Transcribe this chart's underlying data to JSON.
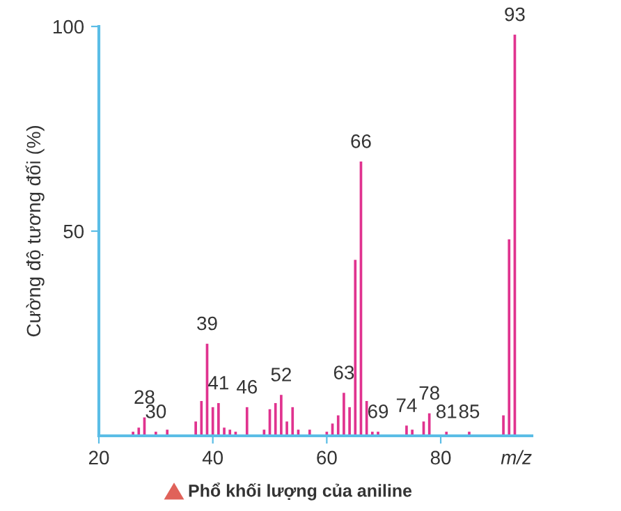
{
  "chart_data": {
    "type": "bar",
    "ylabel": "Cường độ tương đối (%)",
    "xlabel": "m/z",
    "x": [
      26,
      27,
      28,
      30,
      32,
      37,
      38,
      39,
      40,
      41,
      42,
      43,
      44,
      46,
      49,
      50,
      51,
      52,
      53,
      54,
      55,
      57,
      60,
      61,
      62,
      63,
      64,
      65,
      66,
      67,
      68,
      69,
      74,
      75,
      77,
      78,
      81,
      85,
      91,
      92,
      93
    ],
    "values": [
      1,
      2,
      4.5,
      1,
      1.5,
      3.5,
      8.5,
      22.5,
      7,
      8,
      2,
      1.5,
      1,
      7,
      1.5,
      6.5,
      8,
      10,
      3.5,
      7,
      1.5,
      1.5,
      1,
      3,
      5,
      10.5,
      7,
      43,
      67,
      8.5,
      1,
      1,
      2.5,
      1.5,
      3.5,
      5.5,
      1,
      1,
      5,
      48,
      98
    ],
    "color": "#e0338f",
    "xlim": [
      20,
      96
    ],
    "ylim": [
      0,
      100
    ],
    "xticks": [
      20,
      40,
      60,
      80
    ],
    "yticks": [
      50,
      100
    ],
    "grid": false,
    "legend": false,
    "annotations": [
      {
        "text": "28",
        "x": 28,
        "y": 4.5
      },
      {
        "text": "30",
        "x": 30,
        "y": 1
      },
      {
        "text": "39",
        "x": 39,
        "y": 22.5
      },
      {
        "text": "41",
        "x": 41,
        "y": 8
      },
      {
        "text": "46",
        "x": 46,
        "y": 7
      },
      {
        "text": "52",
        "x": 52,
        "y": 10
      },
      {
        "text": "63",
        "x": 63,
        "y": 10.5
      },
      {
        "text": "66",
        "x": 66,
        "y": 67
      },
      {
        "text": "69",
        "x": 69,
        "y": 1
      },
      {
        "text": "74",
        "x": 74,
        "y": 2.5
      },
      {
        "text": "78",
        "x": 78,
        "y": 5.5
      },
      {
        "text": "81",
        "x": 81,
        "y": 1
      },
      {
        "text": "85",
        "x": 85,
        "y": 1
      },
      {
        "text": "93",
        "x": 93,
        "y": 98
      },
      "Phổ khối lượng của aniline"
    ]
  }
}
